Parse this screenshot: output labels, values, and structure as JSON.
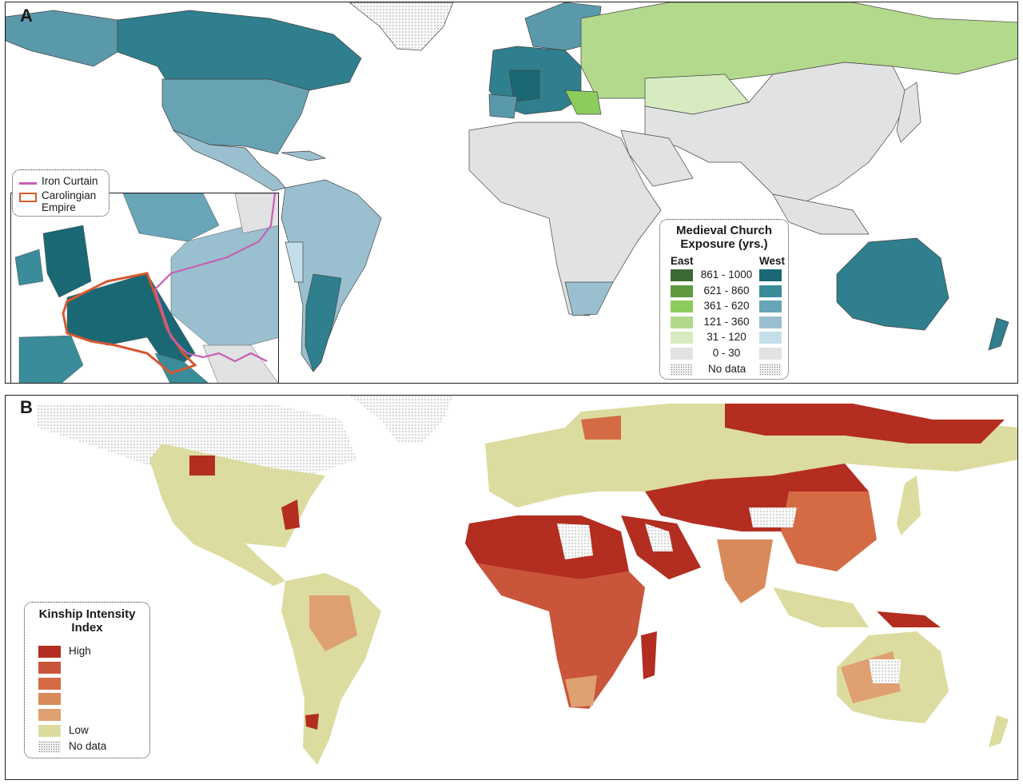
{
  "panel_a": {
    "letter": "A",
    "inset_legend": {
      "items": [
        {
          "label": "Iron Curtain",
          "color": "#c65fb5",
          "style": "line"
        },
        {
          "label": "Carolingian Empire",
          "label_lines": [
            "Carolingian",
            "Empire"
          ],
          "color": "#d6582f",
          "style": "box"
        }
      ]
    },
    "legend": {
      "title_lines": [
        "Medieval Church",
        "Exposure (yrs.)"
      ],
      "east_header": "East",
      "west_header": "West",
      "rows": [
        {
          "range": "861 - 1000",
          "east": "#3b6b34",
          "west": "#1b6875"
        },
        {
          "range": "621 - 860",
          "east": "#5f9a3f",
          "west": "#3a8c9a"
        },
        {
          "range": "361 - 620",
          "east": "#8ccc5d",
          "west": "#68a5b7"
        },
        {
          "range": "121 - 360",
          "east": "#b3d98c",
          "west": "#9ac0cf"
        },
        {
          "range": "31 - 120",
          "east": "#d6ebc0",
          "west": "#c4dfe9"
        },
        {
          "range": "0 - 30",
          "east": "#e1e2e3",
          "west": "#e1e2e3"
        }
      ],
      "no_data": "No data"
    }
  },
  "panel_b": {
    "letter": "B",
    "legend": {
      "title_lines": [
        "Kinship Intensity",
        "Index"
      ],
      "rows": [
        {
          "label": "High",
          "color": "#b32d21"
        },
        {
          "label": "",
          "color": "#c9553a"
        },
        {
          "label": "",
          "color": "#d46b45"
        },
        {
          "label": "",
          "color": "#d98a5b"
        },
        {
          "label": "",
          "color": "#dfa072"
        },
        {
          "label": "Low",
          "color": "#dcdca0"
        }
      ],
      "no_data": "No data"
    }
  }
}
